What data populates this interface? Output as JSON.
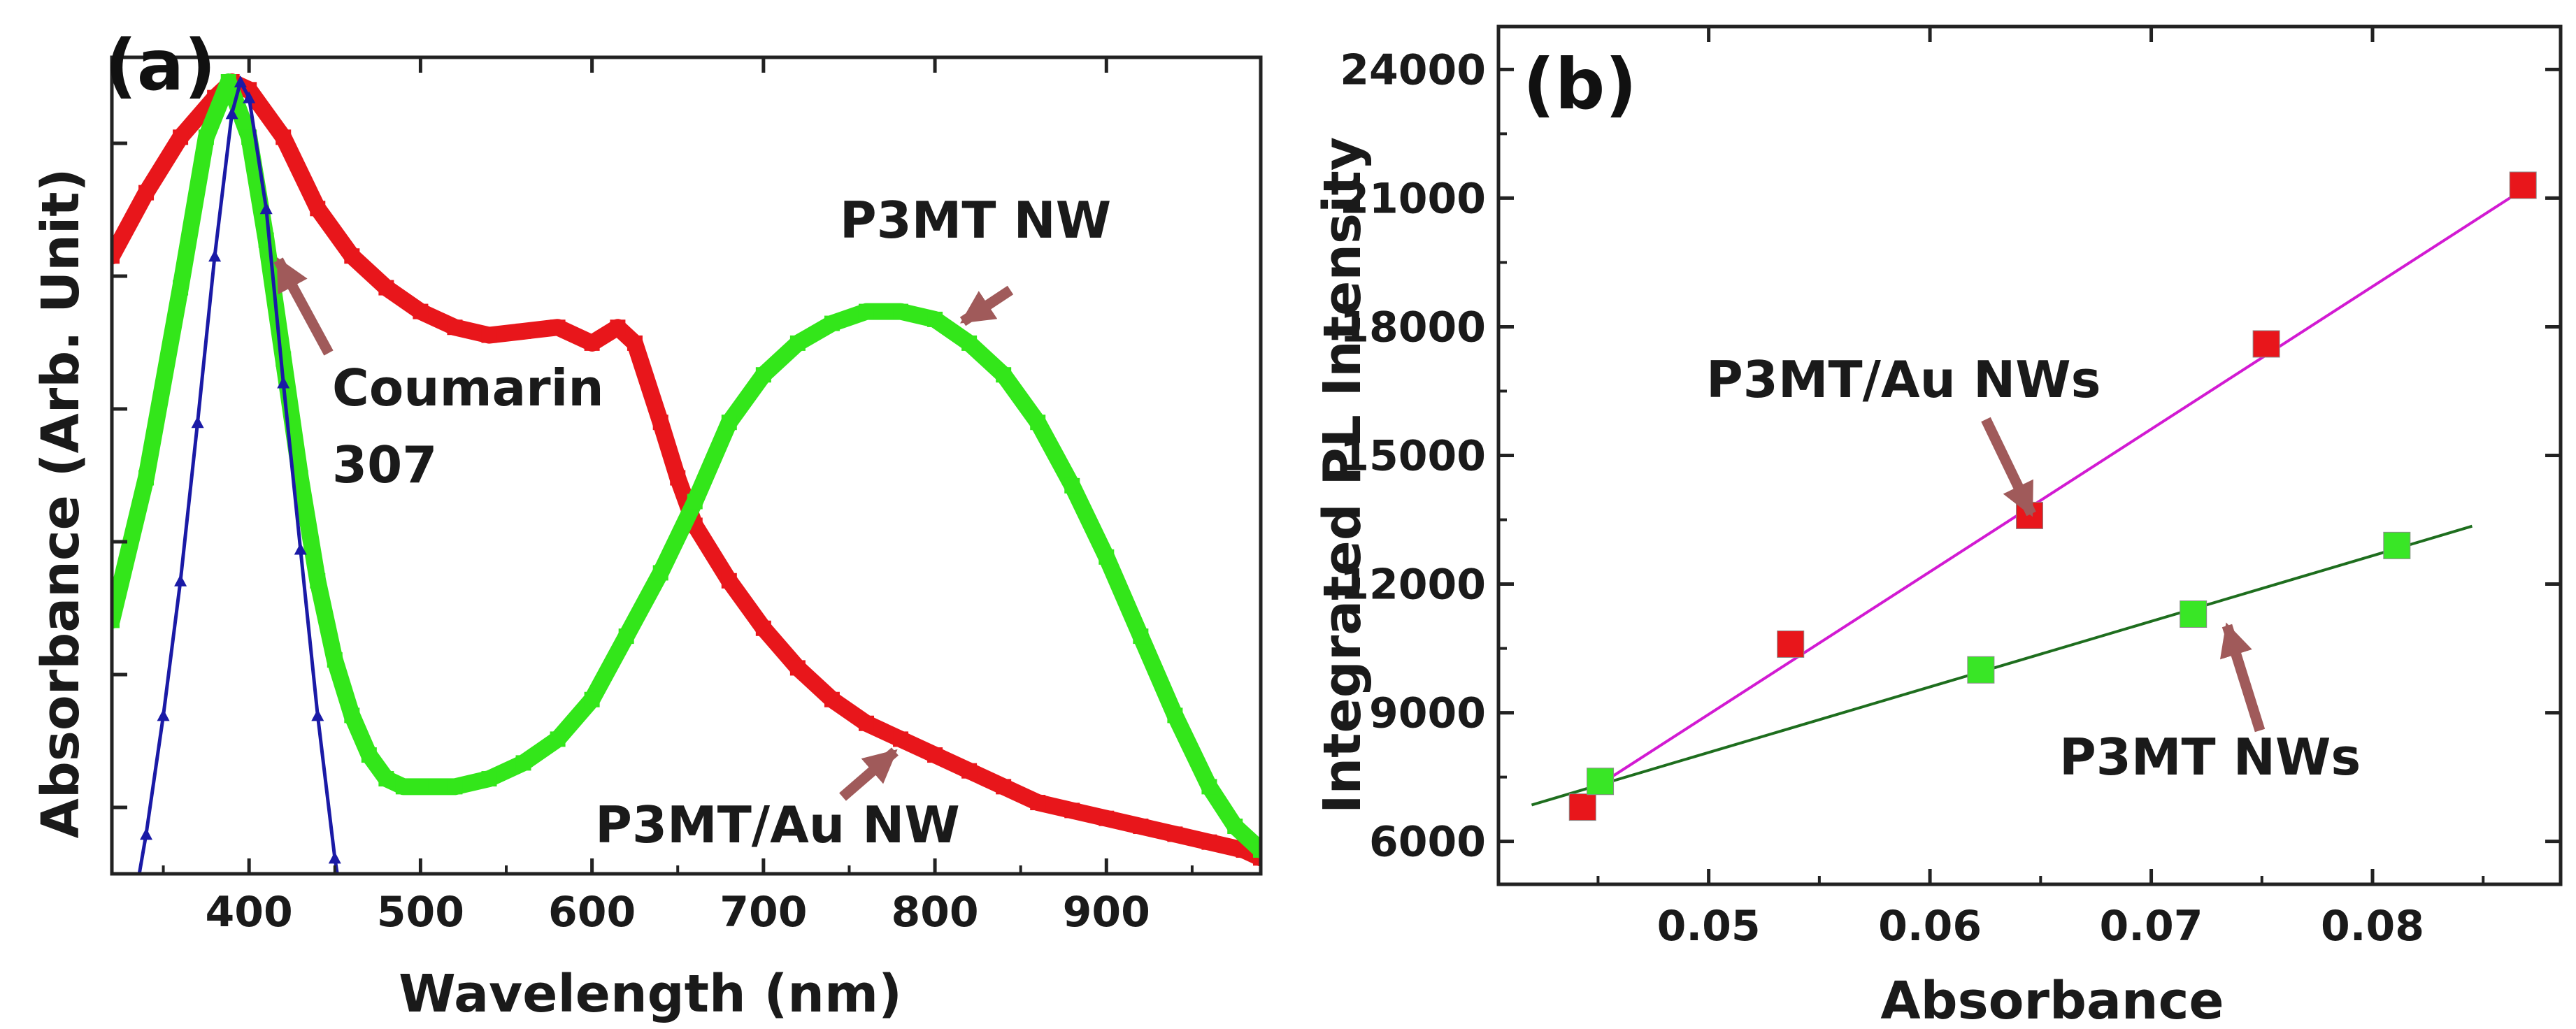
{
  "colors": {
    "red_series": "#e8161b",
    "green_series": "#33e61a",
    "blue_series": "#1a1aa6",
    "magenta_fit": "#d21ad2",
    "green_fit": "#1e6e1e",
    "arrow": "#a05a5a",
    "red_marker": "#e8161b",
    "green_marker": "#39e626"
  },
  "chart_data": [
    {
      "type": "line",
      "panel_label": "(a)",
      "xlabel": "Wavelength (nm)",
      "ylabel": "Absorbance (Arb. Unit)",
      "xlim": [
        320,
        990
      ],
      "ylim": [
        0,
        1
      ],
      "xticks": [
        400,
        500,
        600,
        700,
        800,
        900
      ],
      "y_tick_labels_shown": false,
      "series": [
        {
          "name": "P3MT/Au NW",
          "color_key": "red_series",
          "x": [
            320,
            340,
            360,
            380,
            390,
            400,
            420,
            440,
            460,
            480,
            500,
            520,
            540,
            560,
            580,
            600,
            615,
            625,
            640,
            650,
            660,
            680,
            700,
            720,
            740,
            760,
            780,
            800,
            820,
            840,
            860,
            880,
            900,
            920,
            940,
            960,
            980,
            990
          ],
          "y": [
            0.78,
            0.86,
            0.93,
            0.98,
            1.0,
            0.99,
            0.93,
            0.84,
            0.78,
            0.74,
            0.71,
            0.69,
            0.68,
            0.685,
            0.69,
            0.67,
            0.69,
            0.67,
            0.57,
            0.5,
            0.44,
            0.37,
            0.31,
            0.26,
            0.22,
            0.19,
            0.17,
            0.15,
            0.13,
            0.11,
            0.09,
            0.08,
            0.07,
            0.06,
            0.05,
            0.04,
            0.03,
            0.02
          ]
        },
        {
          "name": "P3MT NW",
          "color_key": "green_series",
          "x": [
            320,
            340,
            360,
            375,
            388,
            400,
            410,
            420,
            430,
            440,
            450,
            460,
            470,
            480,
            490,
            500,
            520,
            540,
            560,
            580,
            600,
            620,
            640,
            660,
            680,
            700,
            720,
            740,
            760,
            780,
            800,
            820,
            840,
            860,
            880,
            900,
            920,
            940,
            960,
            975,
            990
          ],
          "y": [
            0.32,
            0.5,
            0.74,
            0.93,
            1.0,
            0.93,
            0.8,
            0.65,
            0.5,
            0.37,
            0.27,
            0.2,
            0.15,
            0.12,
            0.11,
            0.11,
            0.11,
            0.12,
            0.14,
            0.17,
            0.22,
            0.3,
            0.38,
            0.47,
            0.57,
            0.63,
            0.67,
            0.695,
            0.71,
            0.71,
            0.7,
            0.67,
            0.63,
            0.57,
            0.49,
            0.4,
            0.3,
            0.2,
            0.11,
            0.06,
            0.03
          ]
        },
        {
          "name": "Coumarin 307",
          "color_key": "blue_series",
          "x": [
            332,
            340,
            350,
            360,
            370,
            380,
            390,
            395,
            400,
            410,
            420,
            430,
            440,
            450,
            455
          ],
          "y": [
            -0.05,
            0.05,
            0.2,
            0.37,
            0.57,
            0.78,
            0.96,
            1.0,
            0.98,
            0.84,
            0.62,
            0.41,
            0.2,
            0.02,
            -0.05
          ]
        }
      ],
      "annotations": [
        {
          "text": "P3MT NW"
        },
        {
          "lines": [
            "Coumarin",
            "307"
          ]
        },
        {
          "text": "P3MT/Au NW"
        }
      ]
    },
    {
      "type": "scatter",
      "panel_label": "(b)",
      "xlabel": "Absorbance",
      "ylabel": "Integrated PL Intensity",
      "xlim": [
        0.0405,
        0.0885
      ],
      "ylim": [
        5000,
        25000
      ],
      "xticks": [
        0.05,
        0.06,
        0.07,
        0.08
      ],
      "xtick_labels": [
        "0.05",
        "0.06",
        "0.07",
        "0.08"
      ],
      "yticks": [
        6000,
        9000,
        12000,
        15000,
        18000,
        21000,
        24000
      ],
      "ytick_labels": [
        "6000",
        "9000",
        "12000",
        "15000",
        "18000",
        "21000",
        "24000"
      ],
      "series": [
        {
          "name": "P3MT/Au NWs",
          "color_key": "red_marker",
          "x": [
            0.0443,
            0.0537,
            0.0645,
            0.0752,
            0.0868
          ],
          "y": [
            6800,
            10600,
            13600,
            17600,
            21300
          ],
          "fit": {
            "color_key": "magenta_fit",
            "x": [
              0.045,
              0.0868
            ],
            "y": [
              7300,
              21200
            ]
          }
        },
        {
          "name": "P3MT NWs",
          "color_key": "green_marker",
          "x": [
            0.0451,
            0.0623,
            0.0719,
            0.0811
          ],
          "y": [
            7400,
            10000,
            11300,
            12900
          ],
          "fit": {
            "color_key": "green_fit",
            "x": [
              0.042,
              0.0845
            ],
            "y": [
              6850,
              13350
            ]
          }
        }
      ],
      "annotations": [
        {
          "text": "P3MT/Au NWs"
        },
        {
          "text": "P3MT NWs"
        }
      ]
    }
  ]
}
